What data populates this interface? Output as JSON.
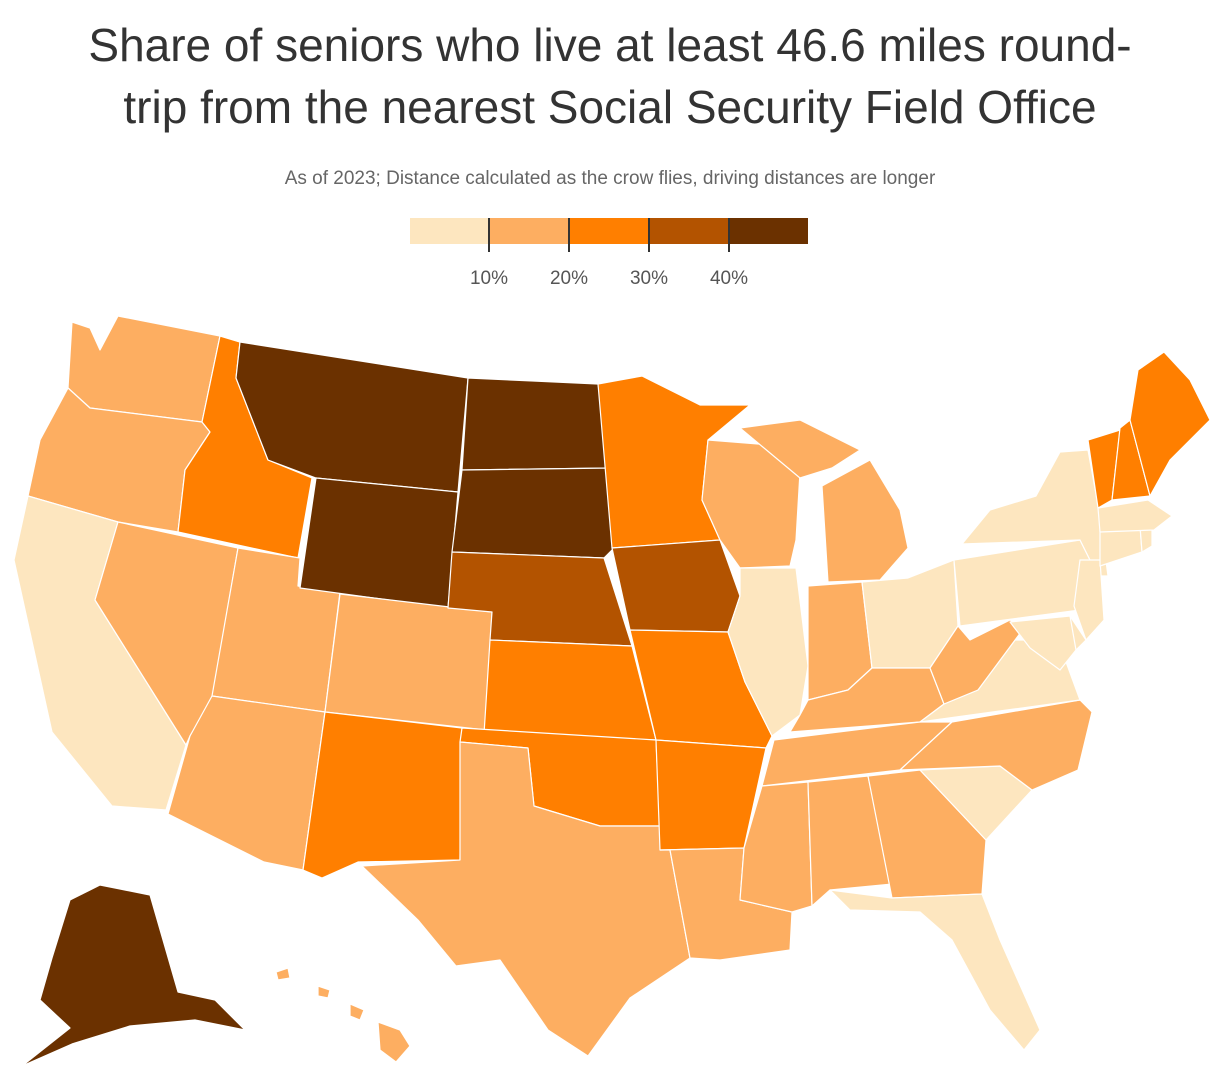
{
  "title_line1": "Share of seniors who live at least 46.6 miles round-",
  "title_line2": "trip from the nearest Social Security Field Office",
  "subtitle": "As of 2023; Distance calculated as the crow flies, driving distances are longer",
  "legend": {
    "colors": [
      "#fde6bf",
      "#fdae61",
      "#ff7f00",
      "#b35300",
      "#6b3100"
    ],
    "ticks": [
      "10%",
      "20%",
      "30%",
      "40%"
    ]
  },
  "states": [
    {
      "abbr": "WA",
      "bin": 1
    },
    {
      "abbr": "OR",
      "bin": 1
    },
    {
      "abbr": "CA",
      "bin": 0
    },
    {
      "abbr": "ID",
      "bin": 2
    },
    {
      "abbr": "NV",
      "bin": 1
    },
    {
      "abbr": "UT",
      "bin": 1
    },
    {
      "abbr": "AZ",
      "bin": 1
    },
    {
      "abbr": "MT",
      "bin": 4
    },
    {
      "abbr": "WY",
      "bin": 4
    },
    {
      "abbr": "CO",
      "bin": 1
    },
    {
      "abbr": "NM",
      "bin": 2
    },
    {
      "abbr": "ND",
      "bin": 4
    },
    {
      "abbr": "SD",
      "bin": 4
    },
    {
      "abbr": "NE",
      "bin": 3
    },
    {
      "abbr": "KS",
      "bin": 2
    },
    {
      "abbr": "OK",
      "bin": 2
    },
    {
      "abbr": "TX",
      "bin": 1
    },
    {
      "abbr": "MN",
      "bin": 2
    },
    {
      "abbr": "IA",
      "bin": 3
    },
    {
      "abbr": "MO",
      "bin": 2
    },
    {
      "abbr": "AR",
      "bin": 2
    },
    {
      "abbr": "LA",
      "bin": 1
    },
    {
      "abbr": "WI",
      "bin": 1
    },
    {
      "abbr": "IL",
      "bin": 0
    },
    {
      "abbr": "MI",
      "bin": 1
    },
    {
      "abbr": "IN",
      "bin": 1
    },
    {
      "abbr": "OH",
      "bin": 0
    },
    {
      "abbr": "KY",
      "bin": 1
    },
    {
      "abbr": "TN",
      "bin": 1
    },
    {
      "abbr": "MS",
      "bin": 1
    },
    {
      "abbr": "AL",
      "bin": 1
    },
    {
      "abbr": "GA",
      "bin": 1
    },
    {
      "abbr": "FL",
      "bin": 0
    },
    {
      "abbr": "SC",
      "bin": 0
    },
    {
      "abbr": "NC",
      "bin": 1
    },
    {
      "abbr": "VA",
      "bin": 0
    },
    {
      "abbr": "WV",
      "bin": 1
    },
    {
      "abbr": "PA",
      "bin": 0
    },
    {
      "abbr": "NY",
      "bin": 0
    },
    {
      "abbr": "VT",
      "bin": 2
    },
    {
      "abbr": "NH",
      "bin": 2
    },
    {
      "abbr": "ME",
      "bin": 2
    },
    {
      "abbr": "MA",
      "bin": 0
    },
    {
      "abbr": "CT",
      "bin": 0
    },
    {
      "abbr": "RI",
      "bin": 0
    },
    {
      "abbr": "NJ",
      "bin": 0
    },
    {
      "abbr": "DE",
      "bin": 0
    },
    {
      "abbr": "MD",
      "bin": 0
    },
    {
      "abbr": "AK",
      "bin": 4
    },
    {
      "abbr": "HI",
      "bin": 1
    }
  ]
}
